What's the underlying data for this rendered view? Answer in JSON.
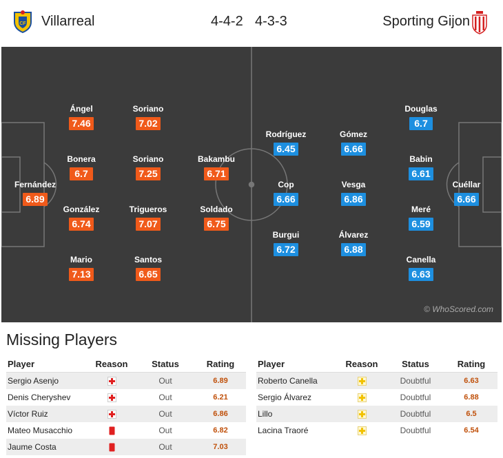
{
  "header": {
    "home_team": "Villarreal",
    "away_team": "Sporting Gijon",
    "home_formation": "4-4-2",
    "away_formation": "4-3-3",
    "home_crest_icon": "villarreal-crest-icon",
    "away_crest_icon": "sporting-gijon-crest-icon"
  },
  "colors": {
    "pitch": "#3b3b3b",
    "home_rating_bg": "#f05a1a",
    "away_rating_bg": "#1d8fe0",
    "missing_rating_text": "#c0500a"
  },
  "pitch": {
    "watermark": "© WhoScored.com",
    "home_players": [
      {
        "name": "Fernández",
        "rating": "6.89"
      },
      {
        "name": "Ángel",
        "rating": "7.46"
      },
      {
        "name": "Bonera",
        "rating": "6.7"
      },
      {
        "name": "González",
        "rating": "6.74"
      },
      {
        "name": "Mario",
        "rating": "7.13"
      },
      {
        "name": "Soriano",
        "rating": "7.02"
      },
      {
        "name": "Soriano",
        "rating": "7.25"
      },
      {
        "name": "Trigueros",
        "rating": "7.07"
      },
      {
        "name": "Santos",
        "rating": "6.65"
      },
      {
        "name": "Bakambu",
        "rating": "6.71"
      },
      {
        "name": "Soldado",
        "rating": "6.75"
      }
    ],
    "away_players": [
      {
        "name": "Rodríguez",
        "rating": "6.45"
      },
      {
        "name": "Cop",
        "rating": "6.66"
      },
      {
        "name": "Burgui",
        "rating": "6.72"
      },
      {
        "name": "Gómez",
        "rating": "6.66"
      },
      {
        "name": "Vesga",
        "rating": "6.86"
      },
      {
        "name": "Álvarez",
        "rating": "6.88"
      },
      {
        "name": "Douglas",
        "rating": "6.7"
      },
      {
        "name": "Babin",
        "rating": "6.61"
      },
      {
        "name": "Meré",
        "rating": "6.59"
      },
      {
        "name": "Canella",
        "rating": "6.63"
      },
      {
        "name": "Cuéllar",
        "rating": "6.66"
      }
    ]
  },
  "missing": {
    "title": "Missing Players",
    "headers": {
      "player": "Player",
      "reason": "Reason",
      "status": "Status",
      "rating": "Rating"
    },
    "home": [
      {
        "player": "Sergio Asenjo",
        "reason_icon": "injury-cross-icon",
        "status": "Out",
        "rating": "6.89"
      },
      {
        "player": "Denis Cheryshev",
        "reason_icon": "injury-cross-icon",
        "status": "Out",
        "rating": "6.21"
      },
      {
        "player": "Víctor Ruiz",
        "reason_icon": "injury-cross-icon",
        "status": "Out",
        "rating": "6.86"
      },
      {
        "player": "Mateo Musacchio",
        "reason_icon": "red-card-icon",
        "status": "Out",
        "rating": "6.82"
      },
      {
        "player": "Jaume Costa",
        "reason_icon": "red-card-icon",
        "status": "Out",
        "rating": "7.03"
      }
    ],
    "away": [
      {
        "player": "Roberto Canella",
        "reason_icon": "doubtful-cross-icon",
        "status": "Doubtful",
        "rating": "6.63"
      },
      {
        "player": "Sergio Álvarez",
        "reason_icon": "doubtful-cross-icon",
        "status": "Doubtful",
        "rating": "6.88"
      },
      {
        "player": "Lillo",
        "reason_icon": "doubtful-cross-icon",
        "status": "Doubtful",
        "rating": "6.5"
      },
      {
        "player": "Lacina Traoré",
        "reason_icon": "doubtful-cross-icon",
        "status": "Doubtful",
        "rating": "6.54"
      }
    ]
  }
}
